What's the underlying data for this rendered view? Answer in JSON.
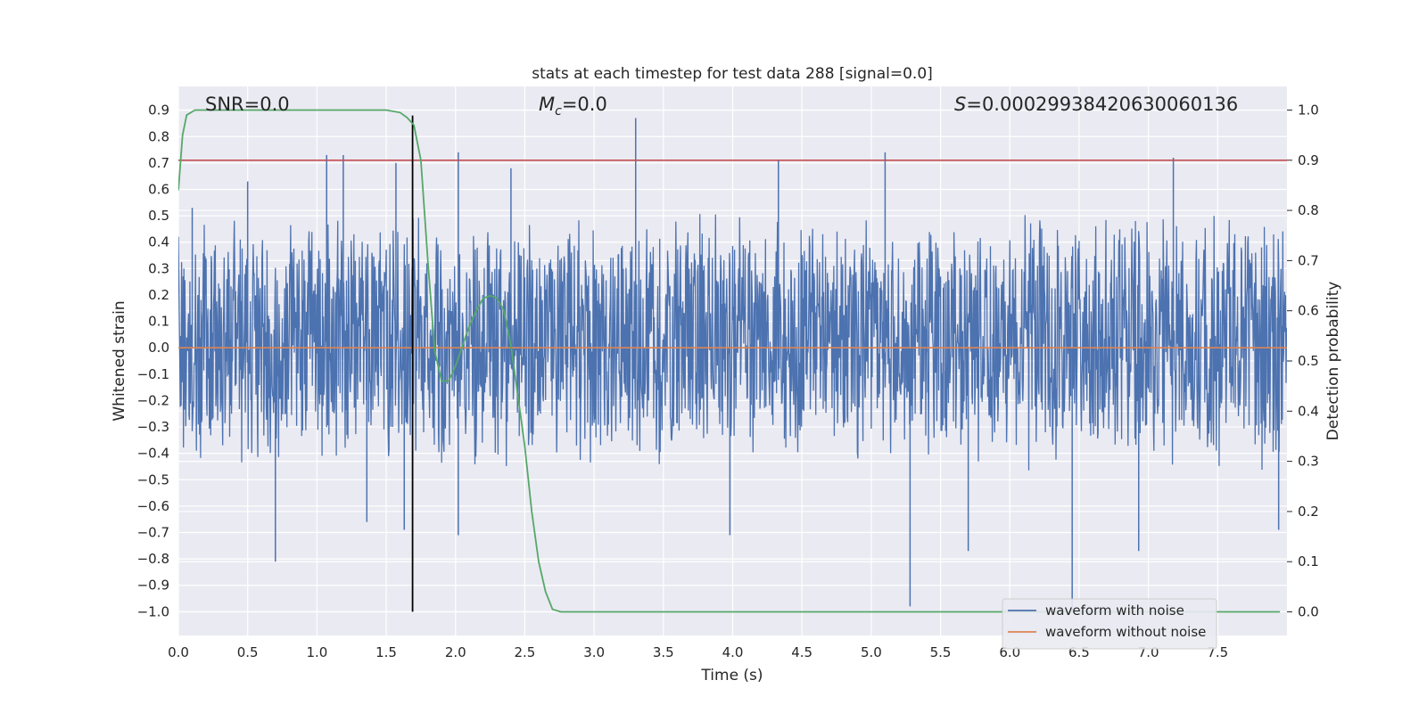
{
  "chart_data": {
    "type": "line",
    "title": "stats at each timestep for test data 288 [signal=0.0]",
    "xlabel": "Time (s)",
    "ylabel": "Whitened strain",
    "ylabel_right": "Detection probability",
    "xlim": [
      0.0,
      8.0
    ],
    "ylim": [
      -1.09,
      0.99
    ],
    "ylim_right": [
      -0.047,
      1.047
    ],
    "xticks": [
      "0.0",
      "0.5",
      "1.0",
      "1.5",
      "2.0",
      "2.5",
      "3.0",
      "3.5",
      "4.0",
      "4.5",
      "5.0",
      "5.5",
      "6.0",
      "6.5",
      "7.0",
      "7.5"
    ],
    "yticks": [
      "0.9",
      "0.8",
      "0.7",
      "0.6",
      "0.5",
      "0.4",
      "0.3",
      "0.2",
      "0.1",
      "0.0",
      "-0.1",
      "-0.2",
      "-0.3",
      "-0.4",
      "-0.5",
      "-0.6",
      "-0.7",
      "-0.8",
      "-0.9",
      "-1.0"
    ],
    "yticks_right": [
      "1.0",
      "0.9",
      "0.8",
      "0.7",
      "0.6",
      "0.5",
      "0.4",
      "0.3",
      "0.2",
      "0.1",
      "0.0"
    ],
    "grid": true,
    "legend_position": "lower right",
    "annotations": {
      "snr": "SNR=0.0",
      "mc": "=0.0",
      "mc_symbol": "M",
      "mc_subscript": "c",
      "s": "=0.00029938420630060136",
      "s_symbol": "S"
    },
    "series": [
      {
        "name": "waveform with noise",
        "color": "#4c72b0",
        "axis": "left",
        "description_points": "noise, approx range -0.4..0.5 with spikes",
        "spikes": [
          {
            "x": 0.7,
            "y": -0.81
          },
          {
            "x": 0.1,
            "y": 0.53
          },
          {
            "x": 0.5,
            "y": 0.63
          },
          {
            "x": 1.07,
            "y": 0.73
          },
          {
            "x": 1.19,
            "y": 0.73
          },
          {
            "x": 1.36,
            "y": -0.66
          },
          {
            "x": 1.57,
            "y": 0.7
          },
          {
            "x": 1.63,
            "y": -0.69
          },
          {
            "x": 2.02,
            "y": 0.74
          },
          {
            "x": 2.02,
            "y": -0.71
          },
          {
            "x": 2.4,
            "y": 0.68
          },
          {
            "x": 3.3,
            "y": 0.87
          },
          {
            "x": 3.98,
            "y": -0.71
          },
          {
            "x": 4.33,
            "y": 0.71
          },
          {
            "x": 5.1,
            "y": 0.74
          },
          {
            "x": 5.28,
            "y": -0.98
          },
          {
            "x": 5.7,
            "y": -0.77
          },
          {
            "x": 6.45,
            "y": -1.0
          },
          {
            "x": 6.93,
            "y": -0.77
          },
          {
            "x": 7.18,
            "y": 0.72
          },
          {
            "x": 7.94,
            "y": -0.69
          }
        ]
      },
      {
        "name": "waveform without noise",
        "color": "#dd8452",
        "axis": "left",
        "x": [
          0.0,
          8.0
        ],
        "y": [
          0.0,
          0.0
        ]
      },
      {
        "name": "",
        "color": "#55a868",
        "axis": "right",
        "x": [
          0.0,
          0.03,
          0.06,
          0.12,
          0.2,
          0.5,
          1.0,
          1.5,
          1.6,
          1.65,
          1.7,
          1.75,
          1.8,
          1.85,
          1.9,
          1.95,
          2.0,
          2.05,
          2.1,
          2.15,
          2.2,
          2.25,
          2.3,
          2.35,
          2.4,
          2.45,
          2.5,
          2.55,
          2.6,
          2.65,
          2.7,
          2.76,
          2.83,
          3.0,
          4.0,
          5.0,
          6.0,
          7.0,
          7.95
        ],
        "y": [
          0.84,
          0.95,
          0.99,
          1.0,
          1.0,
          1.0,
          1.0,
          1.0,
          0.995,
          0.985,
          0.97,
          0.9,
          0.7,
          0.52,
          0.46,
          0.46,
          0.49,
          0.53,
          0.57,
          0.6,
          0.625,
          0.63,
          0.625,
          0.6,
          0.53,
          0.43,
          0.33,
          0.2,
          0.1,
          0.04,
          0.005,
          0.0,
          0.0,
          0.0,
          0.0,
          0.0,
          0.0,
          0.0,
          0.0
        ]
      }
    ],
    "hlines": [
      {
        "axis": "right",
        "y": 0.9,
        "color": "#c44e52"
      }
    ],
    "vlines": [
      {
        "x": 1.69,
        "y_range": [
          -1.0,
          0.88
        ],
        "color": "#000000"
      }
    ],
    "colors": {
      "axes_bg": "#eaeaf2",
      "grid": "#ffffff",
      "noise": "#4c72b0",
      "clean": "#dd8452",
      "prob": "#55a868",
      "threshold": "#c44e52"
    }
  }
}
